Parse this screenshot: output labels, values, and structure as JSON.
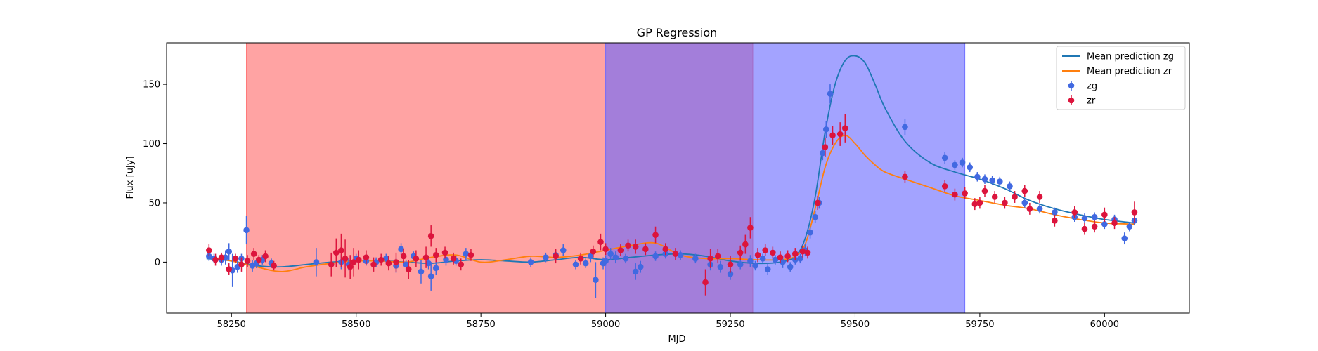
{
  "chart_data": {
    "type": "scatter",
    "title": "GP Regression",
    "xlabel": "MJD",
    "ylabel": "Flux [uJy]",
    "xlim": [
      58120,
      60170
    ],
    "ylim": [
      -43,
      185
    ],
    "x_ticks": [
      58250,
      58500,
      58750,
      59000,
      59250,
      59500,
      59750,
      60000
    ],
    "x_tick_labels": [
      "58250",
      "58500",
      "58750",
      "59000",
      "59250",
      "59500",
      "59750",
      "60000"
    ],
    "y_ticks": [
      0,
      50,
      100,
      150
    ],
    "y_tick_labels": [
      "0",
      "50",
      "100",
      "150"
    ],
    "grid": false,
    "legend_position": "top-right",
    "colors": {
      "zg_line": "#1f77b4",
      "zr_line": "#ff7f0e",
      "zg_points": "#4169e1",
      "zr_points": "#dc143c",
      "red_span": "#ff6666",
      "blue_span": "#6666ff"
    },
    "spans": [
      {
        "x0": 58280,
        "x1": 59295,
        "color": "#ff6666",
        "alpha": 0.6
      },
      {
        "x0": 59000,
        "x1": 59720,
        "color": "#6666ff",
        "alpha": 0.6
      }
    ],
    "legend": [
      {
        "label": "Mean prediction zg",
        "kind": "line",
        "color": "#1f77b4"
      },
      {
        "label": "Mean prediction zr",
        "kind": "line",
        "color": "#ff7f0e"
      },
      {
        "label": "zg",
        "kind": "errorbar",
        "color": "#4169e1"
      },
      {
        "label": "zr",
        "kind": "errorbar",
        "color": "#dc143c"
      }
    ],
    "mean_lines": [
      {
        "name": "Mean prediction zg",
        "color": "#1f77b4",
        "x": [
          58200,
          58250,
          58300,
          58350,
          58400,
          58450,
          58500,
          58550,
          58600,
          58650,
          58700,
          58750,
          58800,
          58850,
          58900,
          58950,
          59000,
          59050,
          59100,
          59150,
          59200,
          59250,
          59300,
          59350,
          59380,
          59400,
          59420,
          59440,
          59460,
          59480,
          59500,
          59520,
          59540,
          59560,
          59600,
          59650,
          59700,
          59750,
          59800,
          59850,
          59900,
          59950,
          60000,
          60060
        ],
        "y": [
          3,
          1,
          -3,
          -4,
          -2,
          0,
          1,
          1,
          0,
          -1,
          1,
          2,
          1,
          0,
          2,
          4,
          2,
          4,
          6,
          7,
          5,
          1,
          -1,
          0,
          5,
          20,
          55,
          110,
          150,
          170,
          174,
          168,
          150,
          130,
          102,
          84,
          76,
          70,
          62,
          52,
          45,
          40,
          36,
          33
        ]
      },
      {
        "name": "Mean prediction zr",
        "color": "#ff7f0e",
        "x": [
          58200,
          58250,
          58300,
          58350,
          58400,
          58450,
          58500,
          58550,
          58600,
          58650,
          58700,
          58750,
          58800,
          58850,
          58900,
          58950,
          59000,
          59050,
          59100,
          59150,
          59200,
          59250,
          59300,
          59350,
          59380,
          59400,
          59420,
          59440,
          59460,
          59480,
          59500,
          59520,
          59540,
          59560,
          59600,
          59650,
          59700,
          59750,
          59800,
          59850,
          59900,
          59950,
          60000,
          60060
        ],
        "y": [
          5,
          1,
          -4,
          -8,
          -4,
          -1,
          1,
          1,
          0,
          4,
          6,
          0,
          2,
          5,
          4,
          6,
          10,
          14,
          16,
          6,
          3,
          3,
          2,
          2,
          5,
          15,
          45,
          80,
          100,
          107,
          100,
          90,
          82,
          76,
          70,
          63,
          56,
          52,
          48,
          45,
          40,
          36,
          33,
          32
        ]
      }
    ],
    "series": [
      {
        "name": "zg",
        "color": "#4169e1",
        "x": [
          58205,
          58215,
          58230,
          58238,
          58245,
          58252,
          58262,
          58270,
          58280,
          58292,
          58300,
          58312,
          58330,
          58420,
          58470,
          58485,
          58500,
          58520,
          58540,
          58560,
          58580,
          58590,
          58600,
          58615,
          58630,
          58645,
          58650,
          58660,
          58680,
          58700,
          58720,
          58850,
          58880,
          58900,
          58915,
          58940,
          58960,
          58970,
          58980,
          58995,
          59000,
          59010,
          59020,
          59040,
          59060,
          59070,
          59100,
          59120,
          59150,
          59180,
          59210,
          59230,
          59250,
          59270,
          59290,
          59300,
          59315,
          59325,
          59340,
          59355,
          59370,
          59380,
          59390,
          59400,
          59410,
          59420,
          59428,
          59435,
          59442,
          59450,
          59600,
          59680,
          59700,
          59715,
          59730,
          59745,
          59760,
          59775,
          59790,
          59810,
          59840,
          59870,
          59900,
          59940,
          59960,
          59980,
          60000,
          60020,
          60040,
          60050,
          60060
        ],
        "y": [
          5,
          3,
          2,
          4,
          9,
          -7,
          -4,
          3,
          27,
          -3,
          -1,
          2,
          -1,
          0,
          0,
          -2,
          3,
          1,
          0,
          3,
          -3,
          11,
          -2,
          5,
          -8,
          -1,
          -12,
          -5,
          2,
          1,
          7,
          0,
          4,
          6,
          10,
          -2,
          -1,
          5,
          -15,
          -1,
          1,
          7,
          4,
          3,
          -8,
          -4,
          5,
          7,
          6,
          3,
          -2,
          -4,
          -10,
          -2,
          1,
          -3,
          3,
          -6,
          2,
          0,
          -4,
          2,
          3,
          10,
          25,
          38,
          50,
          92,
          112,
          142,
          114,
          88,
          82,
          84,
          80,
          72,
          70,
          69,
          68,
          64,
          50,
          45,
          42,
          38,
          37,
          38,
          32,
          36,
          20,
          30,
          35
        ],
        "err": [
          4,
          4,
          5,
          6,
          7,
          14,
          5,
          4,
          12,
          5,
          4,
          4,
          4,
          12,
          6,
          5,
          4,
          4,
          4,
          4,
          6,
          5,
          4,
          4,
          10,
          5,
          12,
          6,
          5,
          4,
          5,
          4,
          4,
          4,
          5,
          4,
          4,
          5,
          15,
          5,
          4,
          5,
          5,
          4,
          7,
          5,
          4,
          4,
          4,
          4,
          5,
          5,
          5,
          4,
          5,
          4,
          4,
          5,
          4,
          5,
          4,
          4,
          4,
          5,
          5,
          5,
          5,
          6,
          7,
          8,
          7,
          5,
          4,
          4,
          4,
          4,
          4,
          4,
          4,
          4,
          4,
          4,
          4,
          4,
          4,
          4,
          4,
          4,
          5,
          4,
          4
        ]
      },
      {
        "name": "zr",
        "color": "#dc143c",
        "x": [
          58205,
          58218,
          58230,
          58245,
          58258,
          58270,
          58282,
          58295,
          58305,
          58318,
          58335,
          58450,
          58460,
          58470,
          58478,
          58488,
          58495,
          58505,
          58520,
          58535,
          58550,
          58565,
          58580,
          58595,
          58605,
          58620,
          58640,
          58650,
          58660,
          58678,
          58695,
          58710,
          58730,
          58900,
          58950,
          58975,
          58990,
          59000,
          59030,
          59045,
          59060,
          59080,
          59100,
          59120,
          59140,
          59200,
          59210,
          59225,
          59250,
          59270,
          59280,
          59290,
          59305,
          59320,
          59335,
          59350,
          59365,
          59380,
          59395,
          59405,
          59425,
          59440,
          59455,
          59470,
          59480,
          59600,
          59680,
          59700,
          59720,
          59740,
          59750,
          59760,
          59780,
          59800,
          59820,
          59840,
          59850,
          59870,
          59900,
          59940,
          59960,
          59980,
          60000,
          60020,
          60060
        ],
        "y": [
          10,
          2,
          4,
          -6,
          3,
          -2,
          1,
          7,
          2,
          5,
          -3,
          -2,
          8,
          10,
          3,
          -4,
          0,
          2,
          4,
          -2,
          2,
          -1,
          0,
          5,
          -6,
          3,
          4,
          22,
          6,
          8,
          3,
          -2,
          6,
          5,
          3,
          9,
          17,
          11,
          10,
          14,
          13,
          11,
          23,
          11,
          7,
          -17,
          3,
          5,
          -2,
          8,
          15,
          29,
          6,
          10,
          8,
          4,
          5,
          7,
          9,
          8,
          50,
          97,
          107,
          108,
          113,
          72,
          64,
          57,
          58,
          49,
          50,
          60,
          55,
          50,
          55,
          60,
          45,
          55,
          35,
          42,
          28,
          30,
          40,
          33,
          42
        ],
        "err": [
          5,
          5,
          4,
          5,
          4,
          6,
          5,
          5,
          4,
          5,
          4,
          10,
          12,
          14,
          16,
          10,
          12,
          8,
          6,
          6,
          5,
          6,
          8,
          6,
          8,
          7,
          9,
          9,
          6,
          5,
          5,
          5,
          5,
          6,
          5,
          5,
          7,
          5,
          5,
          5,
          6,
          5,
          7,
          5,
          5,
          11,
          8,
          6,
          7,
          6,
          8,
          9,
          6,
          5,
          5,
          5,
          5,
          5,
          5,
          5,
          6,
          8,
          8,
          10,
          12,
          5,
          5,
          5,
          5,
          5,
          5,
          5,
          5,
          5,
          5,
          5,
          5,
          5,
          5,
          5,
          5,
          5,
          6,
          5,
          9
        ]
      }
    ]
  }
}
